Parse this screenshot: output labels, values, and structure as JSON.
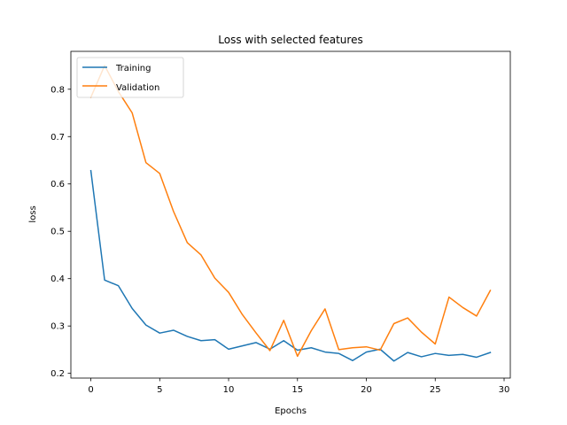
{
  "chart_data": {
    "type": "line",
    "title": "Loss with selected features",
    "xlabel": "Epochs",
    "ylabel": "loss",
    "xlim": [
      -1.45,
      30.45
    ],
    "ylim": [
      0.19,
      0.88
    ],
    "xticks": [
      0,
      5,
      10,
      15,
      20,
      25,
      30
    ],
    "yticks": [
      0.2,
      0.3,
      0.4,
      0.5,
      0.6,
      0.7,
      0.8
    ],
    "grid": false,
    "legend_position": "top-left",
    "x": [
      0,
      1,
      2,
      3,
      4,
      5,
      6,
      7,
      8,
      9,
      10,
      11,
      12,
      13,
      14,
      15,
      16,
      17,
      18,
      19,
      20,
      21,
      22,
      23,
      24,
      25,
      26,
      27,
      28,
      29
    ],
    "series": [
      {
        "name": "Training",
        "color": "#1f77b4",
        "values": [
          0.628,
          0.397,
          0.385,
          0.337,
          0.302,
          0.285,
          0.291,
          0.278,
          0.269,
          0.271,
          0.251,
          0.258,
          0.265,
          0.251,
          0.269,
          0.249,
          0.254,
          0.245,
          0.242,
          0.227,
          0.245,
          0.251,
          0.226,
          0.244,
          0.235,
          0.242,
          0.238,
          0.24,
          0.234,
          0.244
        ]
      },
      {
        "name": "Validation",
        "color": "#ff7f0e",
        "values": [
          0.783,
          0.85,
          0.795,
          0.75,
          0.645,
          0.622,
          0.542,
          0.476,
          0.45,
          0.401,
          0.371,
          0.324,
          0.285,
          0.248,
          0.312,
          0.236,
          0.29,
          0.336,
          0.25,
          0.254,
          0.256,
          0.249,
          0.305,
          0.317,
          0.287,
          0.262,
          0.361,
          0.339,
          0.321,
          0.375
        ]
      }
    ]
  }
}
